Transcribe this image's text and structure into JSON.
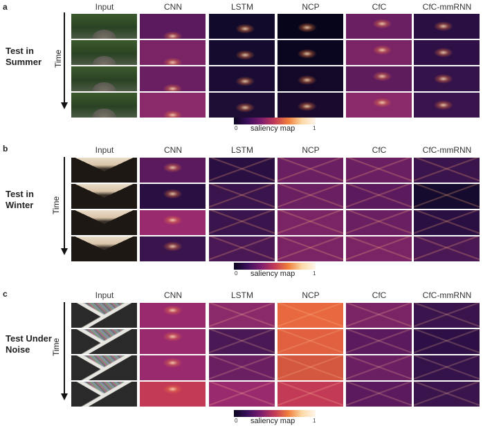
{
  "columns": [
    "Input",
    "CNN",
    "LSTM",
    "NCP",
    "CfC",
    "CfC-mmRNN"
  ],
  "time_label": "Time",
  "colorbar": {
    "label": "saliency map",
    "min": "0",
    "max": "1"
  },
  "panels": [
    {
      "letter": "a",
      "title_line1": "Test in",
      "title_line2": "Summer",
      "scene": "summer"
    },
    {
      "letter": "b",
      "title_line1": "Test in",
      "title_line2": "Winter",
      "scene": "winter"
    },
    {
      "letter": "c",
      "title_line1": "Test Under",
      "title_line2": "Noise",
      "scene": "noise"
    }
  ],
  "colors": {
    "dark": "#0d0623",
    "purple": "#5b1a63",
    "magenta": "#9a2a6e",
    "orange": "#e8683f",
    "accent": "#f39a5e"
  }
}
